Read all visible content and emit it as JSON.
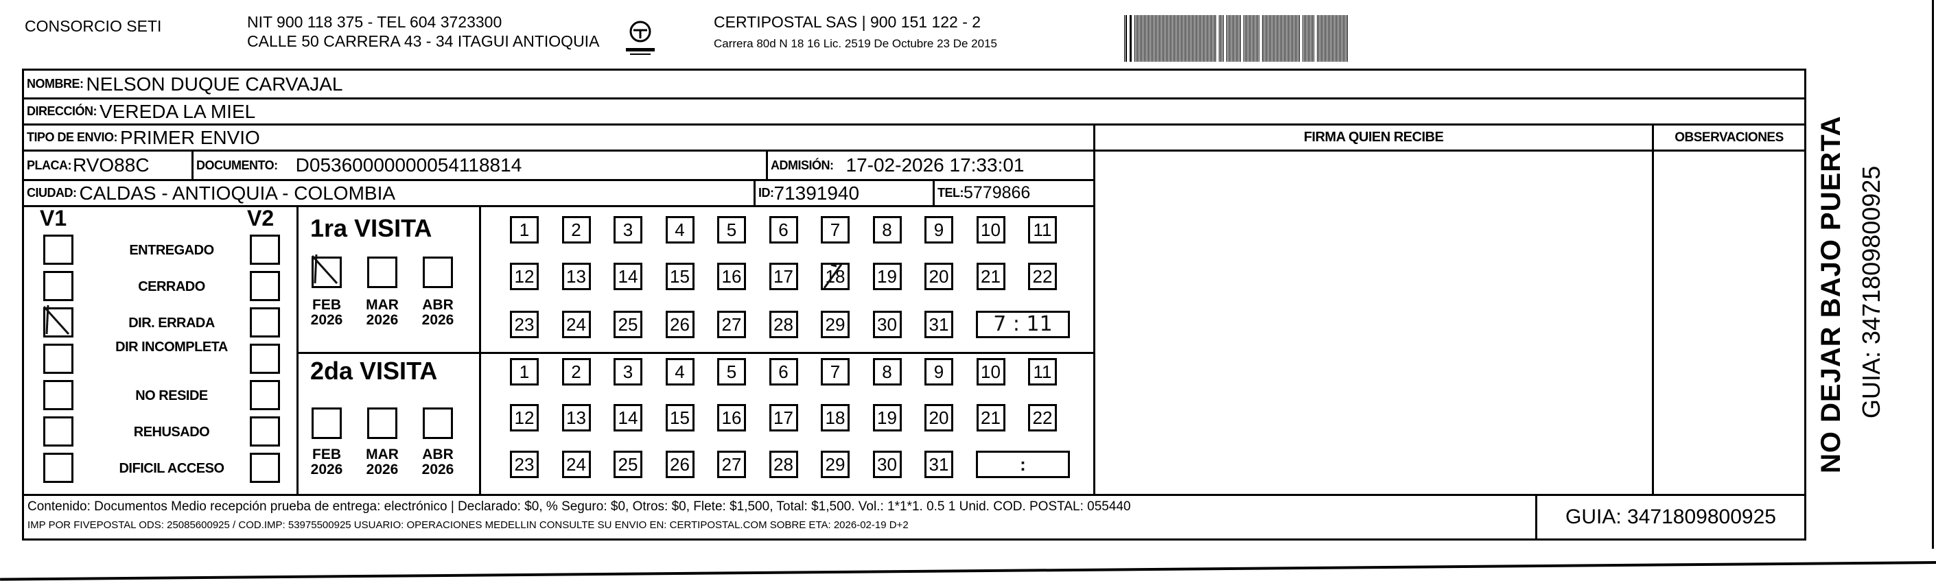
{
  "header": {
    "company": "CONSORCIO SETI",
    "nit_line": "NIT 900 118 375 - TEL 604 3723300",
    "address_line": "CALLE 50 CARRERA 43 - 34 ITAGUI ANTIOQUIA",
    "logo_text": "CERTIPOSTAL",
    "carrier_line": "CERTIPOSTAL SAS | 900 151 122 - 2",
    "license_line": "Carrera 80d N 18 16 Lic. 2519 De Octubre 23 De 2015",
    "barcode_value": "3471809800925"
  },
  "form": {
    "nombre_label": "NOMBRE:",
    "nombre": "NELSON DUQUE CARVAJAL",
    "direccion_label": "DIRECCIÓN:",
    "direccion": "VEREDA LA MIEL",
    "tipo_label": "TIPO DE ENVIO:",
    "tipo": "PRIMER ENVIO",
    "firma_label": "FIRMA QUIEN RECIBE",
    "observaciones_label": "OBSERVACIONES",
    "placa_label": "PLACA:",
    "placa": "RVO88C",
    "documento_label": "DOCUMENTO:",
    "documento": "D05360000000054118814",
    "admision_label": "ADMISIÓN:",
    "admision": "17-02-2026 17:33:01",
    "ciudad_label": "CIUDAD:",
    "ciudad": "CALDAS - ANTIOQUIA - COLOMBIA",
    "id_label": "ID:",
    "id": "71391940",
    "tel_label": "TEL:",
    "tel": "5779866"
  },
  "status": {
    "v1_label": "V1",
    "v2_label": "V2",
    "items": [
      {
        "label": "ENTREGADO",
        "v1": false,
        "v2": false
      },
      {
        "label": "CERRADO",
        "v1": false,
        "v2": false
      },
      {
        "label": "DIR. ERRADA",
        "v1": true,
        "v2": false
      },
      {
        "label": "DIR INCOMPLETA",
        "v1": false,
        "v2": false
      },
      {
        "label": "NO RESIDE",
        "v1": false,
        "v2": false
      },
      {
        "label": "REHUSADO",
        "v1": false,
        "v2": false
      },
      {
        "label": "DIFICIL ACCESO",
        "v1": false,
        "v2": false
      }
    ]
  },
  "visits": [
    {
      "title": "1ra VISITA",
      "months": [
        {
          "month": "FEB",
          "year": "2026",
          "checked": true
        },
        {
          "month": "MAR",
          "year": "2026",
          "checked": false
        },
        {
          "month": "ABR",
          "year": "2026",
          "checked": false
        }
      ],
      "days": [
        1,
        2,
        3,
        4,
        5,
        6,
        7,
        8,
        9,
        10,
        11,
        12,
        13,
        14,
        15,
        16,
        17,
        18,
        19,
        20,
        21,
        22,
        23,
        24,
        25,
        26,
        27,
        28,
        29,
        30,
        31
      ],
      "marked_day": 18,
      "time_separator": ":",
      "time_handwritten": "7 : 11"
    },
    {
      "title": "2da VISITA",
      "months": [
        {
          "month": "FEB",
          "year": "2026",
          "checked": false
        },
        {
          "month": "MAR",
          "year": "2026",
          "checked": false
        },
        {
          "month": "ABR",
          "year": "2026",
          "checked": false
        }
      ],
      "days": [
        1,
        2,
        3,
        4,
        5,
        6,
        7,
        8,
        9,
        10,
        11,
        12,
        13,
        14,
        15,
        16,
        17,
        18,
        19,
        20,
        21,
        22,
        23,
        24,
        25,
        26,
        27,
        28,
        29,
        30,
        31
      ],
      "marked_day": null,
      "time_separator": ":",
      "time_handwritten": ""
    }
  ],
  "footer": {
    "contenido": "Contenido: Documentos Medio recepción prueba de entrega: electrónico | Declarado: $0, % Seguro: $0, Otros: $0, Flete: $1,500, Total: $1,500. Vol.: 1*1*1. 0.5  1 Unid. COD. POSTAL: 055440",
    "imp_line": "IMP POR FIVEPOSTAL ODS: 25085600925 / COD.IMP: 53975500925 USUARIO: OPERACIONES MEDELLIN CONSULTE SU ENVIO EN: CERTIPOSTAL.COM SOBRE ETA: 2026-02-19 D+2",
    "guia": "GUIA: 3471809800925"
  },
  "side": {
    "warning": "NO DEJAR BAJO PUERTA",
    "guia": "GUIA: 3471809800925"
  }
}
